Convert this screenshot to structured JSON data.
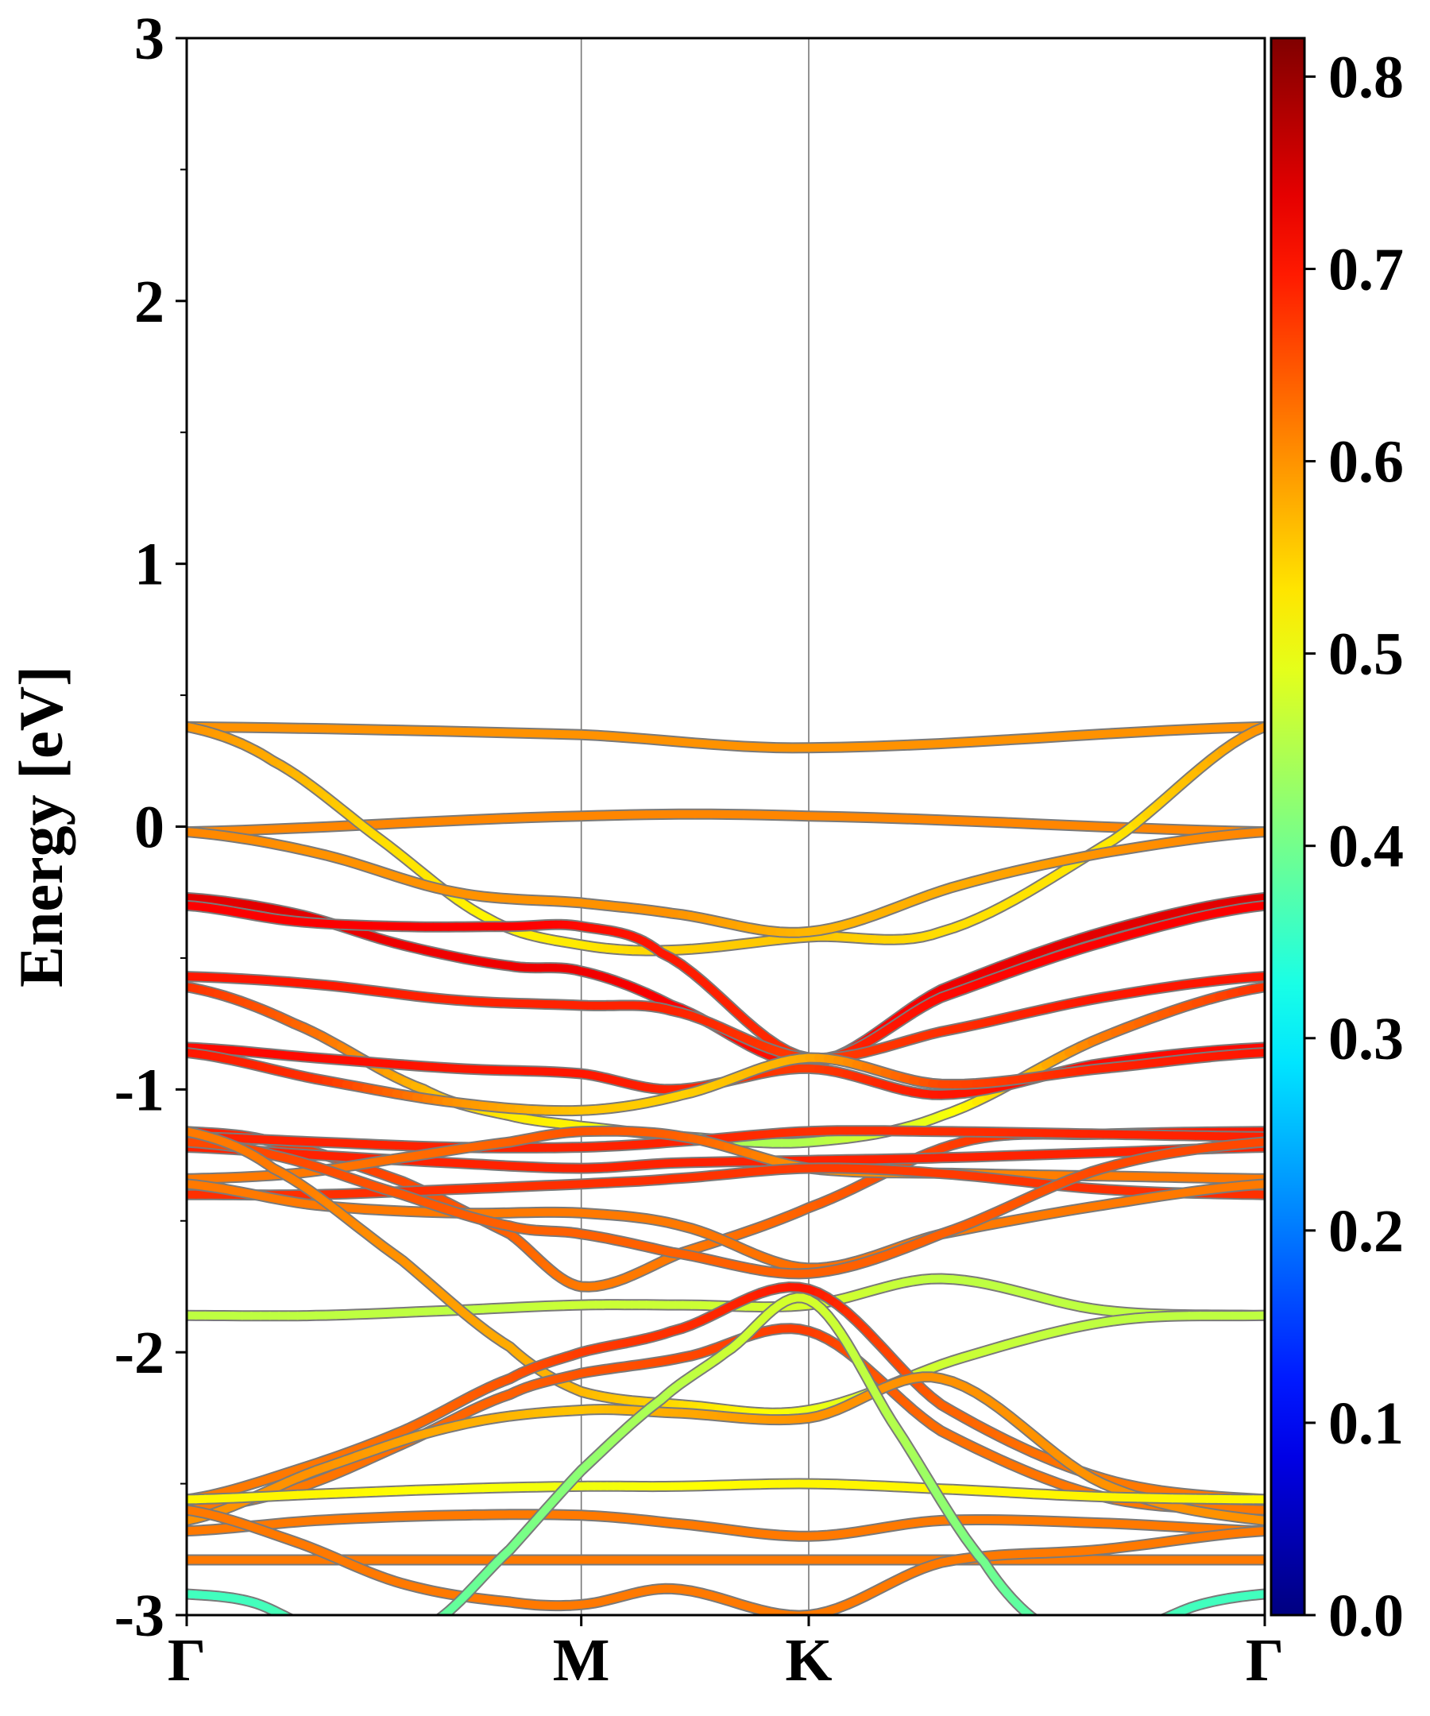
{
  "chart_data": {
    "type": "line",
    "title": "",
    "xlabel": "",
    "ylabel": "Energy [eV]",
    "ylim": [
      -3,
      3
    ],
    "xlim": [
      0,
      1
    ],
    "x_ticks": [
      {
        "label": "Γ",
        "x": 0
      },
      {
        "label": "M",
        "x": 0.366
      },
      {
        "label": "K",
        "x": 0.577
      },
      {
        "label": "Γ",
        "x": 1
      }
    ],
    "y_ticks": [
      3,
      2,
      1,
      0,
      -1,
      -2,
      -3
    ],
    "y_tick_labels": [
      "3",
      "2",
      "1",
      "0",
      "-1",
      "-2",
      "-3"
    ],
    "grid": false,
    "high_symmetry_lines": true,
    "colorbar": {
      "min": 0.0,
      "max": 0.82,
      "colormap": "jet",
      "ticks": [
        0.0,
        0.1,
        0.2,
        0.3,
        0.4,
        0.5,
        0.6,
        0.7,
        0.8
      ],
      "tick_labels": [
        "0.0",
        "0.1",
        "0.2",
        "0.3",
        "0.4",
        "0.5",
        "0.6",
        "0.7",
        "0.8"
      ]
    },
    "series": [
      {
        "x": [
          0,
          0.366,
          0.577,
          1
        ],
        "y": [
          0.38,
          0.35,
          0.3,
          0.38
        ],
        "w": [
          0.6,
          0.6,
          0.6,
          0.6
        ]
      },
      {
        "x": [
          0,
          0.366,
          0.577,
          1
        ],
        "y": [
          -0.02,
          0.04,
          0.04,
          -0.02
        ],
        "w": [
          0.61,
          0.61,
          0.61,
          0.61
        ]
      },
      {
        "x": [
          0,
          0.08,
          0.18,
          0.28,
          0.366,
          0.45,
          0.577,
          0.7,
          0.86,
          1
        ],
        "y": [
          0.38,
          0.25,
          -0.05,
          -0.35,
          -0.45,
          -0.47,
          -0.42,
          -0.4,
          -0.05,
          0.38
        ],
        "w": [
          0.6,
          0.58,
          0.54,
          0.52,
          0.53,
          0.55,
          0.56,
          0.54,
          0.53,
          0.6
        ]
      },
      {
        "x": [
          0,
          0.12,
          0.25,
          0.366,
          0.45,
          0.577,
          0.72,
          0.85,
          1
        ],
        "y": [
          -0.02,
          -0.1,
          -0.25,
          -0.29,
          -0.33,
          -0.4,
          -0.22,
          -0.1,
          -0.02
        ],
        "w": [
          0.61,
          0.6,
          0.6,
          0.6,
          0.6,
          0.57,
          0.58,
          0.6,
          0.61
        ]
      },
      {
        "x": [
          0,
          0.1,
          0.2,
          0.3,
          0.366,
          0.45,
          0.577,
          0.7,
          0.85,
          1
        ],
        "y": [
          -0.27,
          -0.33,
          -0.45,
          -0.53,
          -0.55,
          -0.68,
          -0.9,
          -0.62,
          -0.4,
          -0.27
        ],
        "w": [
          0.74,
          0.74,
          0.73,
          0.73,
          0.73,
          0.72,
          0.7,
          0.73,
          0.74,
          0.74
        ]
      },
      {
        "x": [
          0,
          0.1,
          0.2,
          0.3,
          0.366,
          0.44,
          0.577,
          0.7,
          0.85,
          1
        ],
        "y": [
          -0.3,
          -0.36,
          -0.38,
          -0.38,
          -0.38,
          -0.48,
          -0.88,
          -0.65,
          -0.44,
          -0.3
        ],
        "w": [
          0.72,
          0.72,
          0.72,
          0.72,
          0.71,
          0.7,
          0.68,
          0.71,
          0.72,
          0.72
        ]
      },
      {
        "x": [
          0,
          0.12,
          0.25,
          0.366,
          0.45,
          0.577,
          0.7,
          0.85,
          1
        ],
        "y": [
          -0.57,
          -0.6,
          -0.66,
          -0.68,
          -0.7,
          -0.88,
          -0.78,
          -0.65,
          -0.57
        ],
        "w": [
          0.7,
          0.7,
          0.69,
          0.69,
          0.69,
          0.67,
          0.68,
          0.7,
          0.7
        ]
      },
      {
        "x": [
          0,
          0.1,
          0.22,
          0.3,
          0.366,
          0.46,
          0.577,
          0.7,
          0.85,
          1
        ],
        "y": [
          -0.61,
          -0.75,
          -1.0,
          -1.1,
          -1.14,
          -1.18,
          -1.2,
          -1.1,
          -0.8,
          -0.61
        ],
        "w": [
          0.68,
          0.64,
          0.57,
          0.53,
          0.52,
          0.44,
          0.45,
          0.5,
          0.62,
          0.68
        ]
      },
      {
        "x": [
          0,
          0.12,
          0.25,
          0.366,
          0.45,
          0.577,
          0.7,
          0.85,
          1
        ],
        "y": [
          -0.84,
          -0.88,
          -0.92,
          -0.94,
          -1.0,
          -0.92,
          -1.02,
          -0.9,
          -0.84
        ],
        "w": [
          0.71,
          0.71,
          0.7,
          0.7,
          0.69,
          0.67,
          0.7,
          0.71,
          0.71
        ]
      },
      {
        "x": [
          0,
          0.12,
          0.25,
          0.366,
          0.46,
          0.577,
          0.7,
          0.85,
          1
        ],
        "y": [
          -0.86,
          -0.96,
          -1.05,
          -1.08,
          -1.02,
          -0.88,
          -0.98,
          -0.92,
          -0.86
        ],
        "w": [
          0.7,
          0.68,
          0.6,
          0.56,
          0.55,
          0.58,
          0.66,
          0.69,
          0.7
        ]
      },
      {
        "x": [
          0,
          0.08,
          0.2,
          0.3,
          0.366,
          0.46,
          0.577,
          0.72,
          0.85,
          1
        ],
        "y": [
          -1.16,
          -1.2,
          -1.35,
          -1.55,
          -1.75,
          -1.62,
          -1.45,
          -1.2,
          -1.17,
          -1.16
        ],
        "w": [
          0.7,
          0.68,
          0.66,
          0.64,
          0.62,
          0.62,
          0.64,
          0.67,
          0.69,
          0.7
        ]
      },
      {
        "x": [
          0,
          0.12,
          0.25,
          0.366,
          0.45,
          0.577,
          0.7,
          0.85,
          1
        ],
        "y": [
          -1.18,
          -1.2,
          -1.22,
          -1.22,
          -1.2,
          -1.16,
          -1.16,
          -1.17,
          -1.18
        ],
        "w": [
          0.69,
          0.69,
          0.69,
          0.69,
          0.69,
          0.68,
          0.68,
          0.69,
          0.69
        ]
      },
      {
        "x": [
          0,
          0.12,
          0.25,
          0.366,
          0.45,
          0.577,
          0.7,
          0.85,
          1
        ],
        "y": [
          -1.22,
          -1.25,
          -1.28,
          -1.3,
          -1.28,
          -1.27,
          -1.26,
          -1.24,
          -1.22
        ],
        "w": [
          0.69,
          0.69,
          0.69,
          0.69,
          0.69,
          0.69,
          0.69,
          0.69,
          0.69
        ]
      },
      {
        "x": [
          0,
          0.1,
          0.2,
          0.3,
          0.366,
          0.46,
          0.577,
          0.72,
          0.86,
          1
        ],
        "y": [
          -1.34,
          -1.32,
          -1.26,
          -1.2,
          -1.16,
          -1.18,
          -1.3,
          -1.32,
          -1.33,
          -1.34
        ],
        "w": [
          0.62,
          0.62,
          0.63,
          0.64,
          0.65,
          0.64,
          0.6,
          0.61,
          0.62,
          0.62
        ]
      },
      {
        "x": [
          0,
          0.12,
          0.25,
          0.366,
          0.45,
          0.577,
          0.7,
          0.85,
          1
        ],
        "y": [
          -1.4,
          -1.4,
          -1.38,
          -1.36,
          -1.34,
          -1.3,
          -1.32,
          -1.38,
          -1.4
        ],
        "w": [
          0.68,
          0.68,
          0.68,
          0.68,
          0.68,
          0.67,
          0.67,
          0.68,
          0.68
        ]
      },
      {
        "x": [
          0,
          0.12,
          0.25,
          0.366,
          0.46,
          0.577,
          0.7,
          0.85,
          1
        ],
        "y": [
          -1.36,
          -1.44,
          -1.47,
          -1.47,
          -1.52,
          -1.68,
          -1.55,
          -1.44,
          -1.36
        ],
        "w": [
          0.62,
          0.62,
          0.62,
          0.62,
          0.62,
          0.63,
          0.62,
          0.62,
          0.62
        ]
      },
      {
        "x": [
          0,
          0.08,
          0.2,
          0.3,
          0.366,
          0.45,
          0.577,
          0.7,
          0.85,
          1
        ],
        "y": [
          -1.2,
          -1.25,
          -1.4,
          -1.52,
          -1.55,
          -1.62,
          -1.7,
          -1.55,
          -1.3,
          -1.2
        ],
        "w": [
          0.66,
          0.66,
          0.65,
          0.64,
          0.64,
          0.64,
          0.64,
          0.64,
          0.66,
          0.66
        ]
      },
      {
        "x": [
          0,
          0.12,
          0.25,
          0.366,
          0.46,
          0.577,
          0.7,
          0.85,
          1
        ],
        "y": [
          -1.86,
          -1.86,
          -1.84,
          -1.82,
          -1.82,
          -1.82,
          -1.72,
          -1.84,
          -1.86
        ],
        "w": [
          0.46,
          0.46,
          0.46,
          0.47,
          0.47,
          0.48,
          0.46,
          0.46,
          0.46
        ]
      },
      {
        "x": [
          0,
          0.08,
          0.2,
          0.3,
          0.366,
          0.46,
          0.577,
          0.72,
          0.86,
          1
        ],
        "y": [
          -1.16,
          -1.3,
          -1.65,
          -1.98,
          -2.15,
          -2.2,
          -2.22,
          -2.02,
          -1.88,
          -1.86
        ],
        "w": [
          0.62,
          0.62,
          0.6,
          0.58,
          0.57,
          0.54,
          0.5,
          0.47,
          0.46,
          0.46
        ]
      },
      {
        "x": [
          0,
          0.1,
          0.2,
          0.3,
          0.366,
          0.45,
          0.577,
          0.7,
          0.85,
          1
        ],
        "y": [
          -2.56,
          -2.45,
          -2.3,
          -2.1,
          -2.0,
          -1.92,
          -1.76,
          -2.2,
          -2.48,
          -2.56
        ],
        "w": [
          0.62,
          0.62,
          0.63,
          0.65,
          0.67,
          0.68,
          0.7,
          0.64,
          0.62,
          0.62
        ]
      },
      {
        "x": [
          0,
          0.1,
          0.2,
          0.3,
          0.366,
          0.46,
          0.577,
          0.7,
          0.85,
          1
        ],
        "y": [
          -2.6,
          -2.52,
          -2.35,
          -2.16,
          -2.08,
          -2.02,
          -1.92,
          -2.3,
          -2.55,
          -2.6
        ],
        "w": [
          0.62,
          0.62,
          0.63,
          0.64,
          0.65,
          0.66,
          0.67,
          0.63,
          0.62,
          0.62
        ]
      },
      {
        "x": [
          0,
          0.12,
          0.25,
          0.366,
          0.45,
          0.577,
          0.7,
          0.85,
          1
        ],
        "y": [
          -2.64,
          -2.45,
          -2.28,
          -2.22,
          -2.23,
          -2.25,
          -2.1,
          -2.5,
          -2.64
        ],
        "w": [
          0.6,
          0.6,
          0.58,
          0.56,
          0.58,
          0.6,
          0.6,
          0.6,
          0.6
        ]
      },
      {
        "x": [
          0,
          0.12,
          0.25,
          0.366,
          0.45,
          0.577,
          0.7,
          0.85,
          1
        ],
        "y": [
          -2.56,
          -2.54,
          -2.52,
          -2.51,
          -2.51,
          -2.5,
          -2.52,
          -2.55,
          -2.56
        ],
        "w": [
          0.52,
          0.52,
          0.51,
          0.5,
          0.51,
          0.52,
          0.52,
          0.52,
          0.52
        ]
      },
      {
        "x": [
          0,
          0.12,
          0.25,
          0.366,
          0.45,
          0.577,
          0.7,
          0.85,
          1
        ],
        "y": [
          -2.68,
          -2.64,
          -2.62,
          -2.62,
          -2.65,
          -2.7,
          -2.64,
          -2.65,
          -2.68
        ],
        "w": [
          0.62,
          0.62,
          0.62,
          0.62,
          0.62,
          0.62,
          0.62,
          0.62,
          0.62
        ]
      },
      {
        "x": [
          0,
          0.12,
          0.25,
          0.366,
          0.45,
          0.577,
          0.7,
          0.85,
          1
        ],
        "y": [
          -2.79,
          -2.79,
          -2.79,
          -2.79,
          -2.79,
          -2.79,
          -2.79,
          -2.79,
          -2.79
        ],
        "w": [
          0.62,
          0.62,
          0.62,
          0.62,
          0.62,
          0.62,
          0.62,
          0.62,
          0.62
        ]
      },
      {
        "x": [
          0,
          0.1,
          0.2,
          0.3,
          0.366,
          0.45,
          0.577,
          0.7,
          0.85,
          1
        ],
        "y": [
          -2.6,
          -2.72,
          -2.88,
          -2.95,
          -2.96,
          -2.9,
          -3.0,
          -2.8,
          -2.75,
          -2.68
        ],
        "w": [
          0.62,
          0.62,
          0.62,
          0.62,
          0.62,
          0.62,
          0.62,
          0.62,
          0.62,
          0.62
        ]
      },
      {
        "x": [
          0,
          0.06,
          0.12
        ],
        "y": [
          -2.92,
          -2.95,
          -3.05
        ],
        "w": [
          0.36,
          0.36,
          0.37
        ]
      },
      {
        "x": [
          0.22,
          0.3,
          0.366,
          0.44,
          0.5,
          0.577,
          0.66,
          0.74,
          0.8
        ],
        "y": [
          -3.05,
          -2.75,
          -2.45,
          -2.18,
          -2.0,
          -1.8,
          -2.3,
          -2.8,
          -3.05
        ],
        "w": [
          0.38,
          0.4,
          0.42,
          0.45,
          0.47,
          0.48,
          0.45,
          0.4,
          0.37
        ]
      },
      {
        "x": [
          0.88,
          0.94,
          1
        ],
        "y": [
          -3.05,
          -2.96,
          -2.92
        ],
        "w": [
          0.37,
          0.36,
          0.36
        ]
      }
    ]
  }
}
